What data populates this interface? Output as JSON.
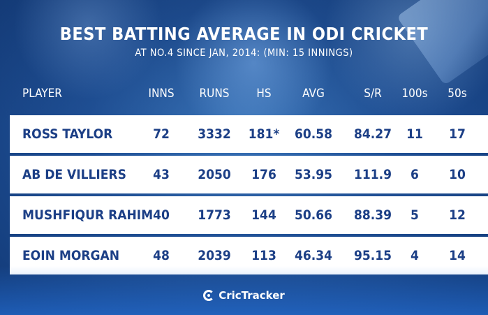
{
  "title": "BEST BATTING AVERAGE IN ODI CRICKET",
  "subtitle": "AT NO.4 SINCE JAN, 2014: (MIN: 15 INNINGS)",
  "columns": [
    "PLAYER",
    "INNS",
    "RUNS",
    "HS",
    "AVG",
    "S/R",
    "100s",
    "50s"
  ],
  "rows": [
    {
      "player": "ROSS TAYLOR",
      "inns": "72",
      "runs": "3332",
      "hs": "181*",
      "avg": "60.58",
      "sr": "84.27",
      "hundreds": "11",
      "fifties": "17"
    },
    {
      "player": "AB DE VILLIERS",
      "inns": "43",
      "runs": "2050",
      "hs": "176",
      "avg": "53.95",
      "sr": "111.9",
      "hundreds": "6",
      "fifties": "10"
    },
    {
      "player": "MUSHFIQUR RAHIM",
      "inns": "40",
      "runs": "1773",
      "hs": "144",
      "avg": "50.66",
      "sr": "88.39",
      "hundreds": "5",
      "fifties": "12"
    },
    {
      "player": "EOIN MORGAN",
      "inns": "48",
      "runs": "2039",
      "hs": "113",
      "avg": "46.34",
      "sr": "95.15",
      "hundreds": "4",
      "fifties": "14"
    }
  ],
  "brand": {
    "name": "CricTracker",
    "logo_icon": "crictracker-logo-icon"
  },
  "colors": {
    "background": "#1f4f94",
    "row_background": "#ffffff",
    "row_text": "#1c3f86",
    "header_text": "#ffffff"
  }
}
